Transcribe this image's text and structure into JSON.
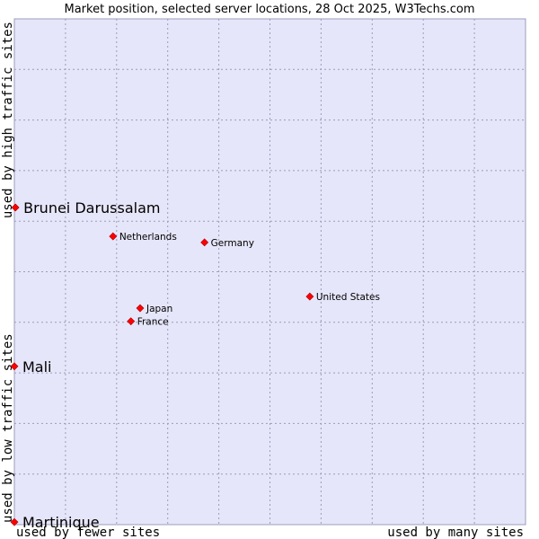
{
  "chart_data": {
    "type": "scatter",
    "title": "Market position, selected server locations, 28 Oct 2025, W3Techs.com",
    "xlabel_left": "used by fewer sites",
    "xlabel_right": "used by many sites",
    "ylabel_bottom": "used by low traffic sites",
    "ylabel_top": "used by high traffic sites",
    "xlim": [
      0,
      100
    ],
    "ylim": [
      0,
      100
    ],
    "grid": true,
    "point_color": "#ff0000",
    "plot_background": "#e6e6fa",
    "points": [
      {
        "label": "Brunei Darussalam",
        "x": 0.2,
        "y": 62.7,
        "emphasis": true
      },
      {
        "label": "Netherlands",
        "x": 19.3,
        "y": 57.0,
        "emphasis": false
      },
      {
        "label": "Germany",
        "x": 37.2,
        "y": 55.8,
        "emphasis": false
      },
      {
        "label": "United States",
        "x": 57.8,
        "y": 45.1,
        "emphasis": false
      },
      {
        "label": "Japan",
        "x": 24.6,
        "y": 42.8,
        "emphasis": false
      },
      {
        "label": "France",
        "x": 22.8,
        "y": 40.2,
        "emphasis": false
      },
      {
        "label": "Mali",
        "x": 0.0,
        "y": 31.3,
        "emphasis": true
      },
      {
        "label": "Martinique",
        "x": 0.0,
        "y": 0.5,
        "emphasis": true
      }
    ]
  }
}
